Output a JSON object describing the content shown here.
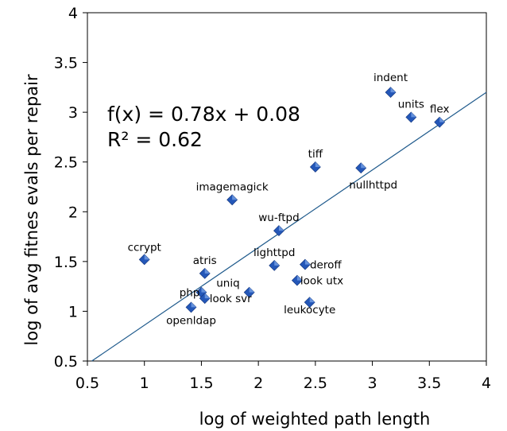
{
  "chart_data": {
    "type": "scatter",
    "title": "",
    "xlabel": "log of weighted path length",
    "ylabel": "log of avg fitnes evals per repair",
    "xlim": [
      0.5,
      4
    ],
    "ylim": [
      0.5,
      4
    ],
    "xticks": [
      "0.5",
      "1",
      "1.5",
      "2",
      "2.5",
      "3",
      "3.5",
      "4"
    ],
    "yticks": [
      "0.5",
      "1",
      "1.5",
      "2",
      "2.5",
      "3",
      "3.5",
      "4"
    ],
    "grid": false,
    "marker_color": "#2457b8",
    "line_color": "#1f5a8c",
    "trendline": {
      "equation": "f(x) = 0.78x + 0.08",
      "r2": "R² = 0.62",
      "slope": 0.78,
      "intercept": 0.08
    },
    "points": [
      {
        "label": "indent",
        "x": 3.16,
        "y": 3.2
      },
      {
        "label": "units",
        "x": 3.34,
        "y": 2.95
      },
      {
        "label": "flex",
        "x": 3.59,
        "y": 2.9
      },
      {
        "label": "tiff",
        "x": 2.5,
        "y": 2.45
      },
      {
        "label": "nullhttpd",
        "x": 2.9,
        "y": 2.44
      },
      {
        "label": "imagemagick",
        "x": 1.77,
        "y": 2.12
      },
      {
        "label": "wu-ftpd",
        "x": 2.18,
        "y": 1.81
      },
      {
        "label": "ccrypt",
        "x": 1.0,
        "y": 1.52
      },
      {
        "label": "lighttpd",
        "x": 2.14,
        "y": 1.46
      },
      {
        "label": "deroff",
        "x": 2.41,
        "y": 1.47
      },
      {
        "label": "atris",
        "x": 1.53,
        "y": 1.38
      },
      {
        "label": "look utx",
        "x": 2.34,
        "y": 1.31
      },
      {
        "label": "uniq",
        "x": 1.92,
        "y": 1.19
      },
      {
        "label": "php",
        "x": 1.5,
        "y": 1.19
      },
      {
        "label": "look svr",
        "x": 1.53,
        "y": 1.13
      },
      {
        "label": "leukocyte",
        "x": 2.45,
        "y": 1.09
      },
      {
        "label": "openldap",
        "x": 1.41,
        "y": 1.04
      }
    ]
  }
}
